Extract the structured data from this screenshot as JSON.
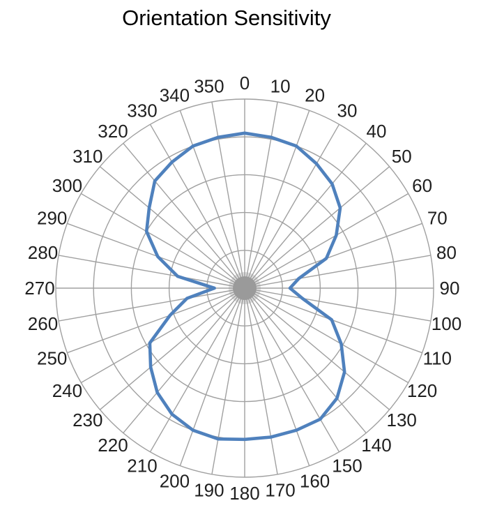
{
  "title": "Orientation Sensitivity",
  "chart_data": {
    "type": "line",
    "subtype": "polar",
    "title": "Orientation Sensitivity",
    "angle_unit": "degrees",
    "angles": [
      0,
      10,
      20,
      30,
      40,
      50,
      60,
      70,
      80,
      90,
      100,
      110,
      120,
      130,
      140,
      150,
      160,
      170,
      180,
      190,
      200,
      210,
      220,
      230,
      240,
      250,
      260,
      270,
      280,
      290,
      300,
      310,
      320,
      330,
      340,
      350
    ],
    "r_values": [
      0.82,
      0.81,
      0.8,
      0.76,
      0.72,
      0.66,
      0.56,
      0.46,
      0.29,
      0.24,
      0.31,
      0.49,
      0.59,
      0.69,
      0.76,
      0.8,
      0.8,
      0.8,
      0.8,
      0.81,
      0.8,
      0.77,
      0.72,
      0.65,
      0.58,
      0.42,
      0.31,
      0.16,
      0.36,
      0.49,
      0.6,
      0.66,
      0.74,
      0.77,
      0.8,
      0.81
    ],
    "rlim": [
      0,
      1
    ],
    "radial_grid_interval": 0.2,
    "radial_gridline_count": 5,
    "angular_grid_step_deg": 10,
    "angular_tick_labels": [
      "0",
      "10",
      "20",
      "30",
      "40",
      "50",
      "60",
      "70",
      "80",
      "90",
      "100",
      "110",
      "120",
      "130",
      "140",
      "150",
      "160",
      "170",
      "180",
      "190",
      "200",
      "210",
      "220",
      "230",
      "240",
      "250",
      "260",
      "270",
      "280",
      "290",
      "300",
      "310",
      "320",
      "330",
      "340",
      "350"
    ],
    "grid": "on",
    "legend": "none",
    "closed_curve": true,
    "colors": {
      "series": "#4f81bd",
      "grid": "#a0a0a0",
      "tick_label": "#1f1f1f",
      "title": "#000000",
      "background": "#ffffff",
      "center_hub": "#9a9a9a"
    }
  }
}
